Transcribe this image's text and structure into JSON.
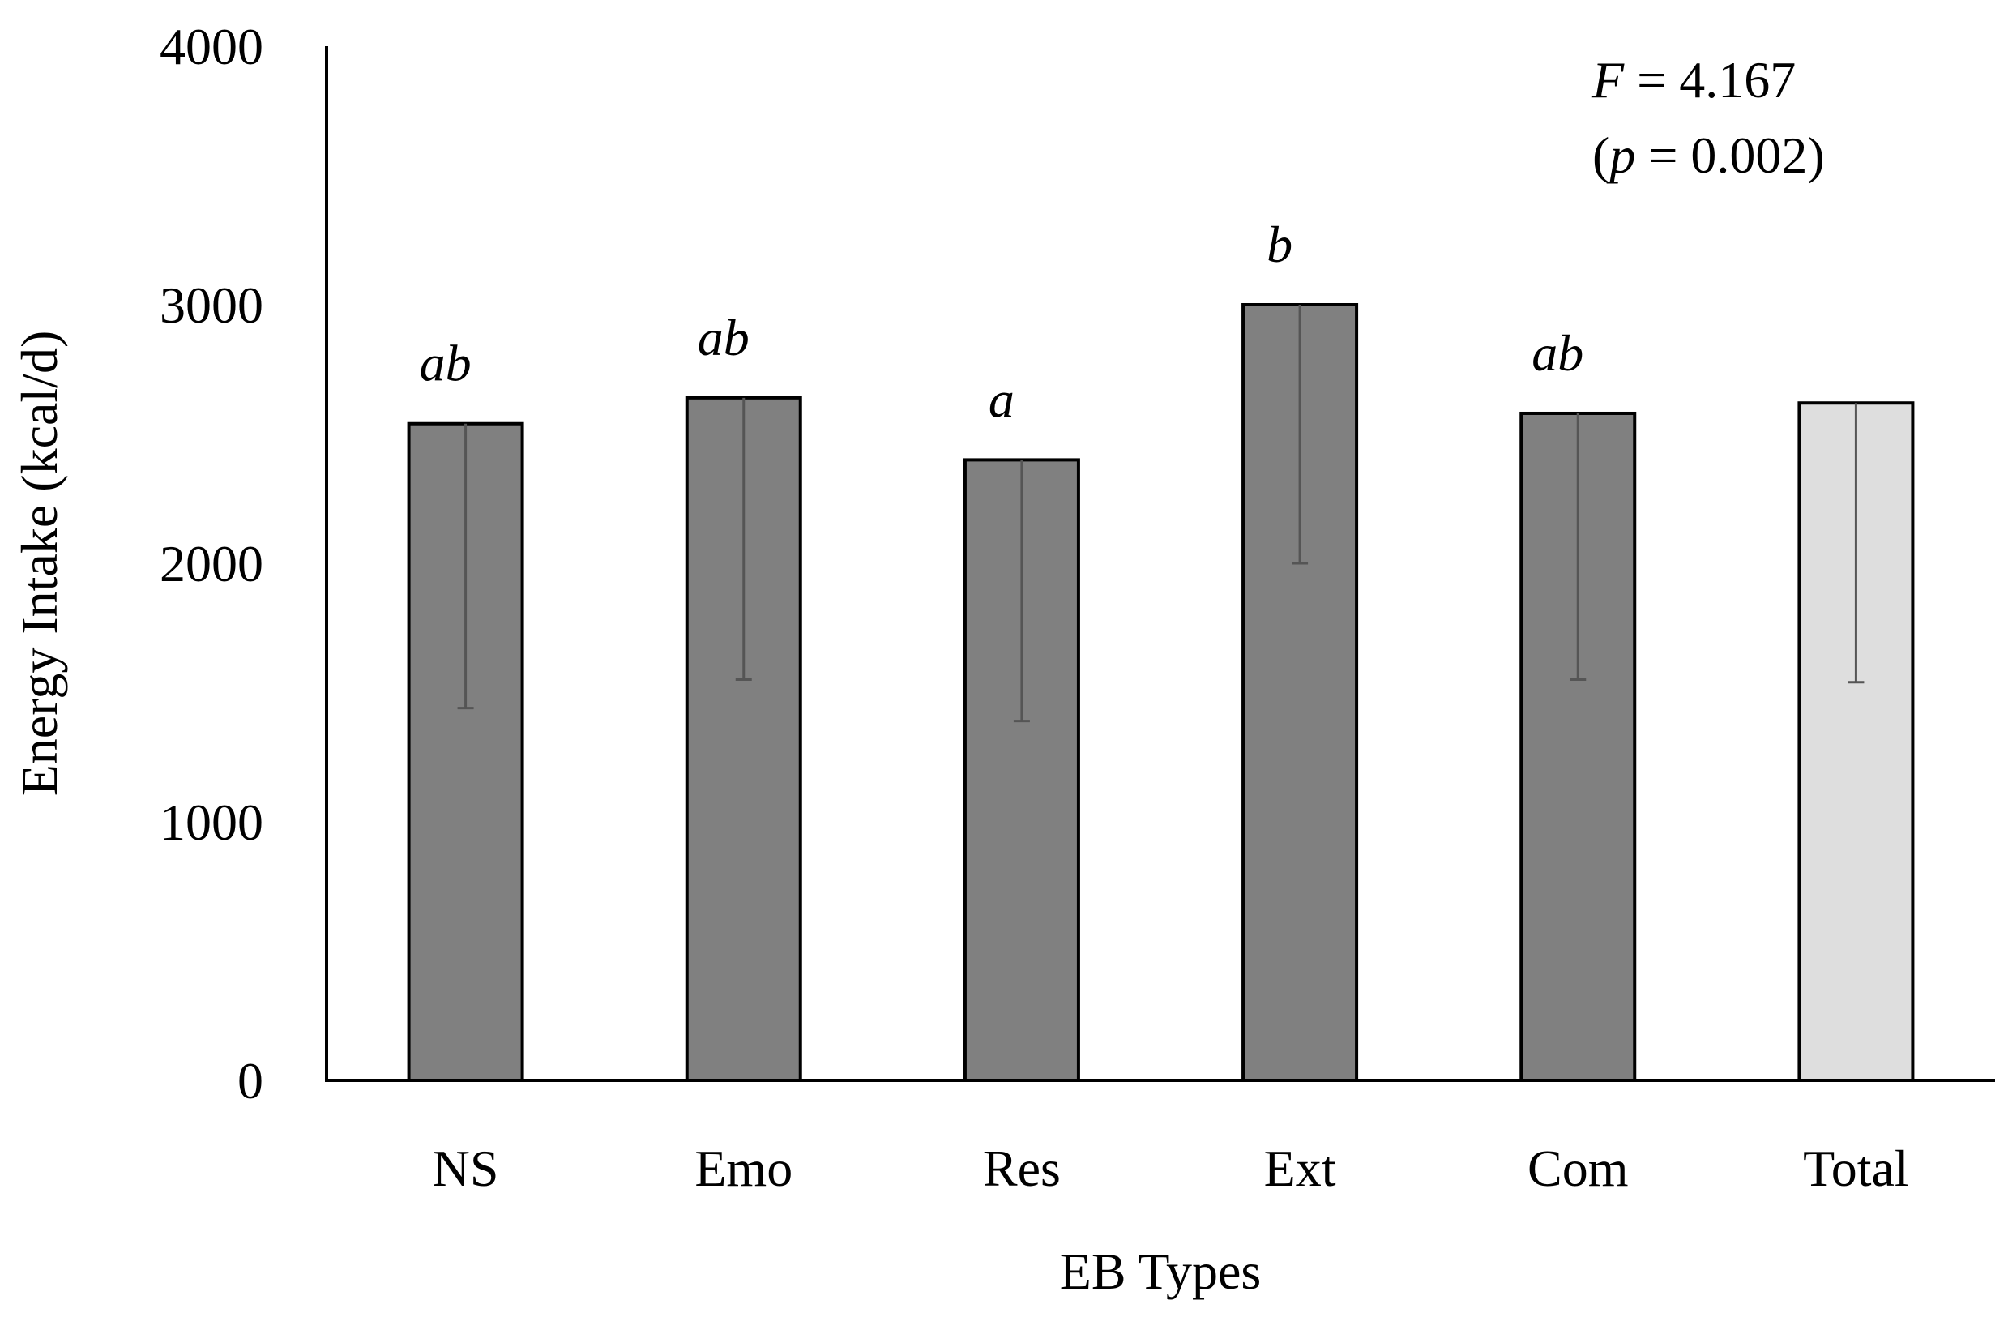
{
  "chart_data": {
    "type": "bar",
    "xlabel": "EB Types",
    "ylabel": "Energy Intake (kcal/d)",
    "ylim": [
      0,
      4000
    ],
    "yticks": [
      "0",
      "1000",
      "2000",
      "3000",
      "4000"
    ],
    "categories": [
      "NS",
      "Emo",
      "Res",
      "Ext",
      "Com",
      "Total"
    ],
    "values": [
      2540,
      2640,
      2400,
      3000,
      2580,
      2620
    ],
    "error_lower": [
      1440,
      1550,
      1390,
      2000,
      1550,
      1540
    ],
    "significance_letters": [
      "ab",
      "ab",
      "a",
      "b",
      "ab",
      ""
    ],
    "bar_colors": [
      "#808080",
      "#808080",
      "#808080",
      "#808080",
      "#808080",
      "#dedede"
    ],
    "grid": false,
    "legend": "none",
    "annotation": {
      "f_symbol": "F",
      "f_rest": " = 4.167",
      "p_open": "(",
      "p_symbol": "p",
      "p_rest": " = 0.002)"
    }
  }
}
